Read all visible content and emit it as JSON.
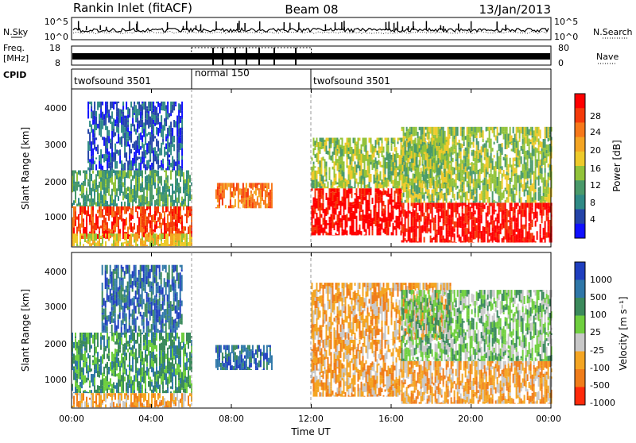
{
  "header": {
    "station": "Rankin Inlet (fitACF)",
    "beam": "Beam 08",
    "date": "13/Jan/2013"
  },
  "strip": {
    "nsky_label": "N.Sky",
    "nsky_ticks": [
      "10^5",
      "10^0"
    ],
    "nsearch_label": "N.Search",
    "nsearch_ticks": [
      "10^5",
      "10^0"
    ],
    "freq_label_1": "Freq.",
    "freq_label_2": "[MHz]",
    "freq_ticks": [
      "18",
      "8"
    ],
    "nave_label": "Nave",
    "nave_ticks": [
      "80",
      "0"
    ],
    "cpid_label": "CPID",
    "modes": [
      {
        "name": "twofsound 3501",
        "start": 0,
        "end": 6
      },
      {
        "name": "normal 150",
        "start": 6,
        "end": 12
      },
      {
        "name": "twofsound 3501",
        "start": 12,
        "end": 24
      }
    ]
  },
  "power_panel": {
    "ylabel": "Slant Range [km]",
    "yticks": [
      "1000",
      "2000",
      "3000",
      "4000"
    ],
    "colorbar_label": "Power [dB]",
    "colorbar_ticks": [
      "28",
      "24",
      "20",
      "16",
      "12",
      "8",
      "4"
    ],
    "colors": [
      "#ff0000",
      "#f53a0a",
      "#f7781a",
      "#f4a523",
      "#eeca2a",
      "#92c33a",
      "#4a9a6a",
      "#2f8a86",
      "#2444a8",
      "#1010ff"
    ]
  },
  "velocity_panel": {
    "ylabel": "Slant Range [km]",
    "yticks": [
      "1000",
      "2000",
      "3000",
      "4000"
    ],
    "colorbar_label": "Velocity [m s⁻¹]",
    "colorbar_ticks": [
      "1000",
      "500",
      "100",
      "25",
      "-25",
      "-100",
      "-500",
      "-1000"
    ],
    "colors": [
      "#1f3fbf",
      "#2f77a8",
      "#3b8a5c",
      "#6fcf3f",
      "#c8c8c8",
      "#f4a523",
      "#f07d1a",
      "#ff2a0a"
    ]
  },
  "x_axis": {
    "label": "Time UT",
    "ticks": [
      "00:00",
      "04:00",
      "08:00",
      "12:00",
      "16:00",
      "20:00",
      "00:00"
    ]
  },
  "chart_data": {
    "type": "heatmap",
    "title": "Rankin Inlet (fitACF)",
    "subtitle": "Beam 08",
    "date": "13/Jan/2013",
    "xlabel": "Time UT",
    "ylabel": "Slant Range [km]",
    "xlim": [
      0,
      24
    ],
    "ylim": [
      180,
      4550
    ],
    "x_ticks": [
      "00:00",
      "04:00",
      "08:00",
      "12:00",
      "16:00",
      "20:00",
      "00:00"
    ],
    "y_ticks": [
      1000,
      2000,
      3000,
      4000
    ],
    "panels": [
      {
        "name": "Power [dB]",
        "scale_ticks": [
          4,
          8,
          12,
          16,
          20,
          24,
          28
        ],
        "regions": [
          {
            "t": [
              0,
              6
            ],
            "range": [
              400,
              1300
            ],
            "level": 26
          },
          {
            "t": [
              0,
              6
            ],
            "range": [
              1300,
              2300
            ],
            "level": 12
          },
          {
            "t": [
              0,
              6
            ],
            "range": [
              200,
              550
            ],
            "level": 18
          },
          {
            "t": [
              0.8,
              5.5
            ],
            "range": [
              2300,
              4200
            ],
            "level": 8
          },
          {
            "t": [
              7.2,
              10
            ],
            "range": [
              1250,
              1950
            ],
            "level": 24
          },
          {
            "t": [
              12,
              16.5
            ],
            "range": [
              500,
              1800
            ],
            "level": 28
          },
          {
            "t": [
              12,
              19
            ],
            "range": [
              1800,
              3200
            ],
            "level": 14
          },
          {
            "t": [
              16.5,
              24
            ],
            "range": [
              300,
              1400
            ],
            "level": 28
          },
          {
            "t": [
              16.5,
              24
            ],
            "range": [
              1400,
              3500
            ],
            "level": 16
          }
        ]
      },
      {
        "name": "Velocity [m s-1]",
        "scale_ticks": [
          -1000,
          -500,
          -100,
          -25,
          25,
          100,
          500,
          1000
        ],
        "regions": [
          {
            "t": [
              0,
              6
            ],
            "range": [
              600,
              2300
            ],
            "level": 100
          },
          {
            "t": [
              0,
              6
            ],
            "range": [
              200,
              600
            ],
            "level": -300
          },
          {
            "t": [
              1.5,
              5.5
            ],
            "range": [
              2300,
              4200
            ],
            "level": 500
          },
          {
            "t": [
              7.2,
              10
            ],
            "range": [
              1250,
              1950
            ],
            "level": 300
          },
          {
            "t": [
              12,
              16.5
            ],
            "range": [
              500,
              2100
            ],
            "level": -300
          },
          {
            "t": [
              12,
              19
            ],
            "range": [
              2100,
              3700
            ],
            "level": -150
          },
          {
            "t": [
              16.5,
              24
            ],
            "range": [
              300,
              1500
            ],
            "level": -200
          },
          {
            "t": [
              16.5,
              24
            ],
            "range": [
              1500,
              3500
            ],
            "level": 25
          }
        ]
      }
    ],
    "modes": [
      {
        "name": "twofsound 3501",
        "start": 0,
        "end": 6
      },
      {
        "name": "normal 150",
        "start": 6,
        "end": 12
      },
      {
        "name": "twofsound 3501",
        "start": 12,
        "end": 24
      }
    ],
    "freq_range_mhz": [
      8,
      18
    ],
    "nave_range": [
      0,
      80
    ]
  }
}
